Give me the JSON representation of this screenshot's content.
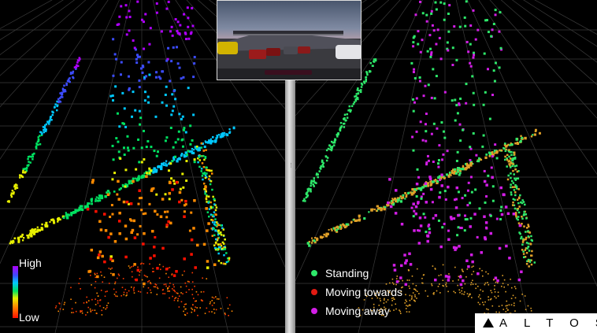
{
  "color_scale": {
    "high_label": "High",
    "low_label": "Low"
  },
  "legend": [
    {
      "label": "Standing",
      "color": "#2ee86a"
    },
    {
      "label": "Moving towards",
      "color": "#e11a12"
    },
    {
      "label": "Moving away",
      "color": "#d21ee6"
    }
  ],
  "brand": {
    "name": "ALTOS"
  },
  "colors": {
    "background": "#000000",
    "grid": "#3a3a3a",
    "divider": "#c8c8c8"
  }
}
